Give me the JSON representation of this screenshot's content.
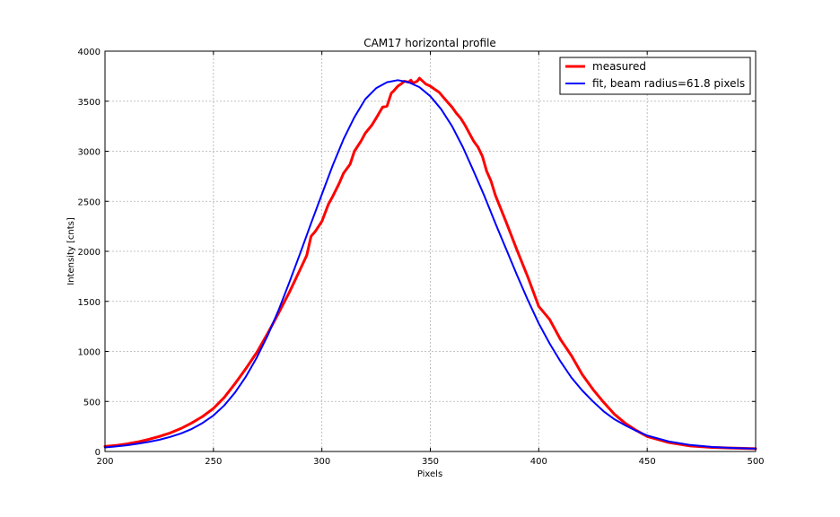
{
  "chart_data": {
    "type": "line",
    "title": "CAM17 horizontal profile",
    "xlabel": "Pixels",
    "ylabel": "Intensity [cnts]",
    "xlim": [
      200,
      500
    ],
    "ylim": [
      0,
      4000
    ],
    "xticks": [
      200,
      250,
      300,
      350,
      400,
      450,
      500
    ],
    "yticks": [
      0,
      500,
      1000,
      1500,
      2000,
      2500,
      3000,
      3500,
      4000
    ],
    "grid": true,
    "legend_position": "top-right",
    "series": [
      {
        "name": "measured",
        "color": "#ff0000",
        "x": [
          200,
          205,
          210,
          215,
          220,
          225,
          230,
          235,
          240,
          245,
          250,
          255,
          260,
          265,
          270,
          275,
          280,
          285,
          290,
          293,
          295,
          297,
          300,
          303,
          305,
          308,
          310,
          313,
          315,
          318,
          320,
          323,
          325,
          328,
          330,
          332,
          333,
          335,
          337,
          338,
          340,
          341,
          342,
          344,
          345,
          346,
          348,
          350,
          352,
          354,
          356,
          358,
          360,
          362,
          364,
          366,
          368,
          370,
          372,
          374,
          376,
          378,
          380,
          385,
          390,
          395,
          400,
          405,
          410,
          415,
          420,
          425,
          430,
          435,
          440,
          445,
          450,
          460,
          470,
          480,
          490,
          500
        ],
        "y": [
          50,
          60,
          75,
          95,
          120,
          150,
          185,
          230,
          285,
          350,
          430,
          540,
          680,
          830,
          990,
          1180,
          1380,
          1590,
          1820,
          1960,
          2150,
          2200,
          2300,
          2470,
          2550,
          2680,
          2780,
          2870,
          3000,
          3100,
          3180,
          3260,
          3330,
          3440,
          3450,
          3580,
          3600,
          3650,
          3680,
          3700,
          3690,
          3710,
          3680,
          3700,
          3730,
          3710,
          3670,
          3650,
          3620,
          3590,
          3540,
          3490,
          3440,
          3380,
          3330,
          3260,
          3180,
          3100,
          3040,
          2950,
          2800,
          2700,
          2560,
          2290,
          2010,
          1740,
          1450,
          1320,
          1120,
          960,
          770,
          620,
          490,
          370,
          280,
          210,
          150,
          90,
          55,
          40,
          33,
          28
        ]
      },
      {
        "name": "fit, beam radius=61.8 pixels",
        "color": "#0000ff",
        "x": [
          200,
          205,
          210,
          215,
          220,
          225,
          230,
          235,
          240,
          245,
          250,
          255,
          260,
          265,
          270,
          275,
          280,
          285,
          290,
          295,
          300,
          305,
          310,
          315,
          320,
          325,
          330,
          335,
          340,
          345,
          350,
          355,
          360,
          365,
          370,
          375,
          380,
          385,
          390,
          395,
          400,
          405,
          410,
          415,
          420,
          425,
          430,
          435,
          440,
          445,
          450,
          460,
          470,
          480,
          490,
          500
        ],
        "y": [
          40,
          50,
          62,
          77,
          95,
          117,
          145,
          180,
          225,
          285,
          360,
          460,
          590,
          750,
          940,
          1160,
          1410,
          1690,
          1980,
          2280,
          2570,
          2860,
          3120,
          3340,
          3520,
          3630,
          3690,
          3710,
          3690,
          3640,
          3550,
          3420,
          3250,
          3040,
          2800,
          2550,
          2280,
          2020,
          1760,
          1510,
          1280,
          1080,
          900,
          740,
          610,
          500,
          400,
          320,
          260,
          205,
          160,
          100,
          65,
          45,
          35,
          28
        ]
      }
    ]
  }
}
